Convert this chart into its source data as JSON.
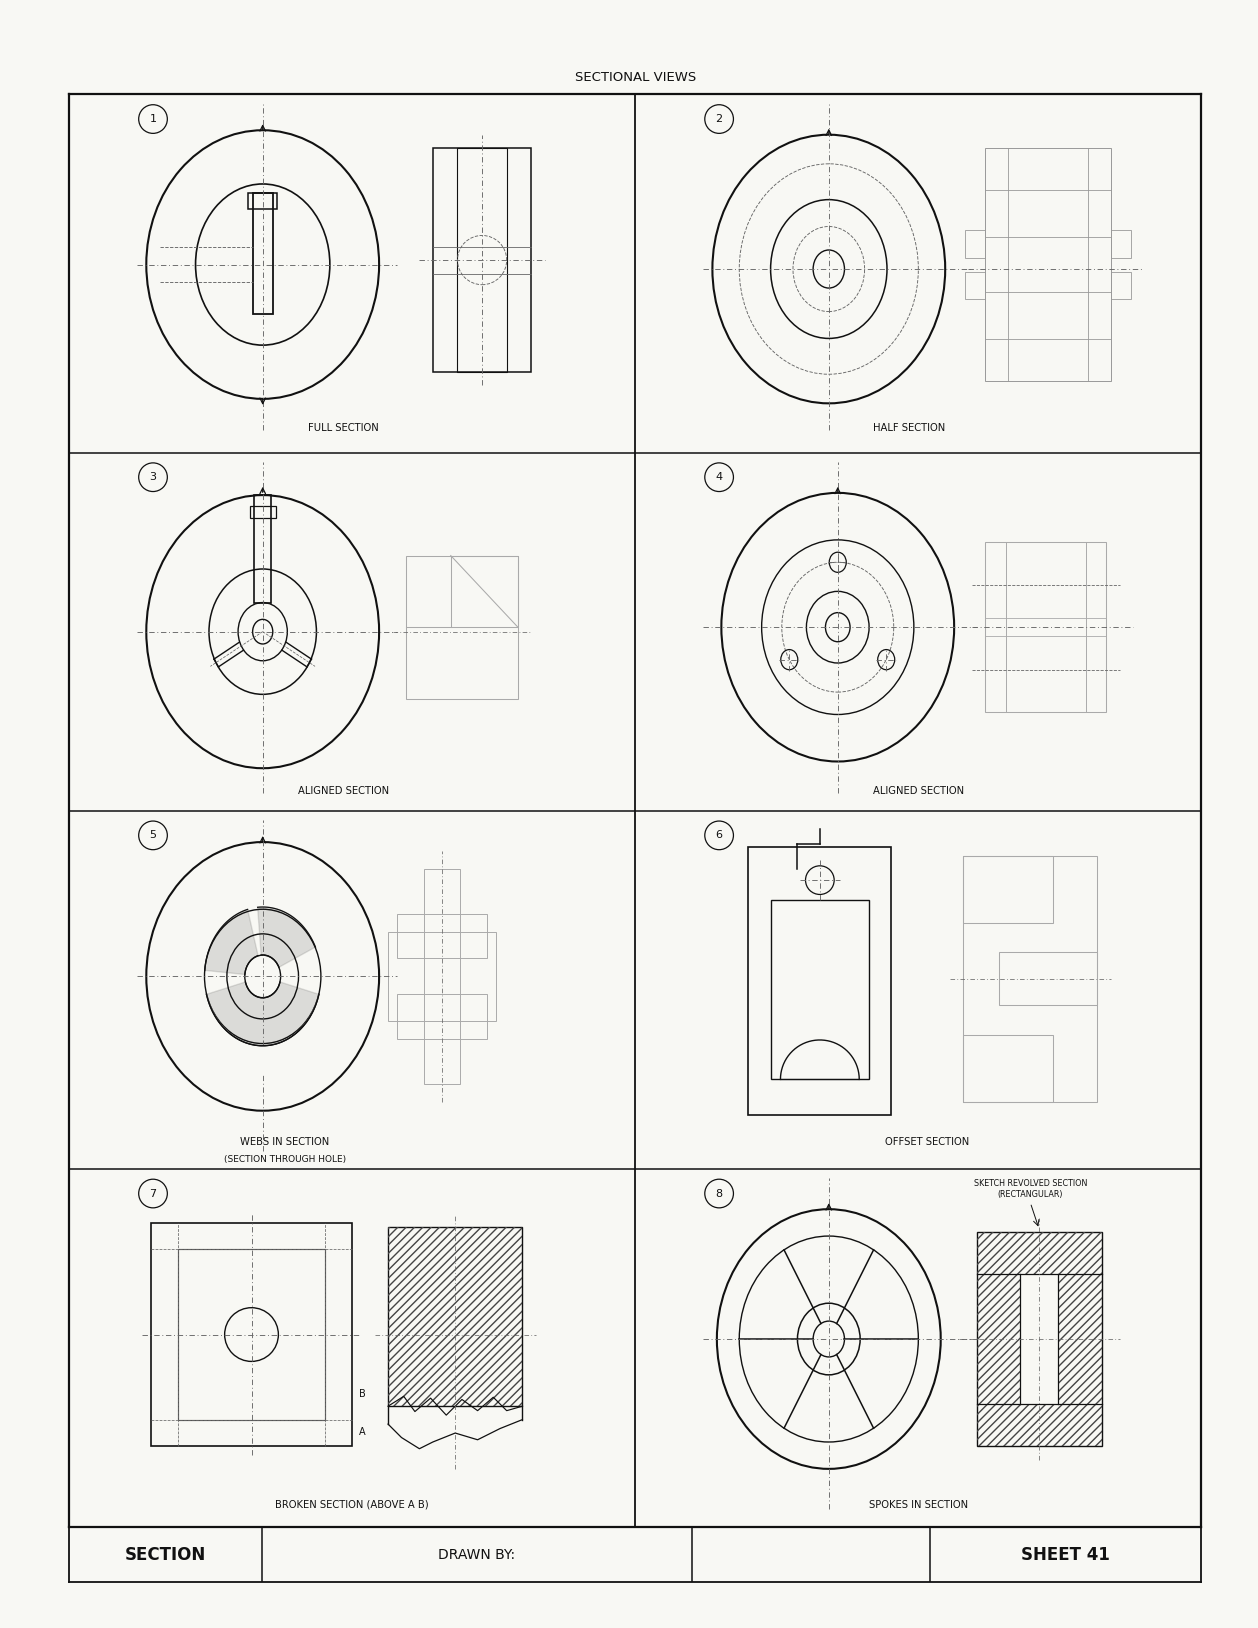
{
  "title": "SECTIONAL VIEWS",
  "bg": "#f8f8f4",
  "lc": "#111111",
  "dc": "#666666",
  "hc": "#222222",
  "footer_left": "SECTION",
  "footer_mid": "DRAWN BY:",
  "footer_right": "SHEET 41"
}
